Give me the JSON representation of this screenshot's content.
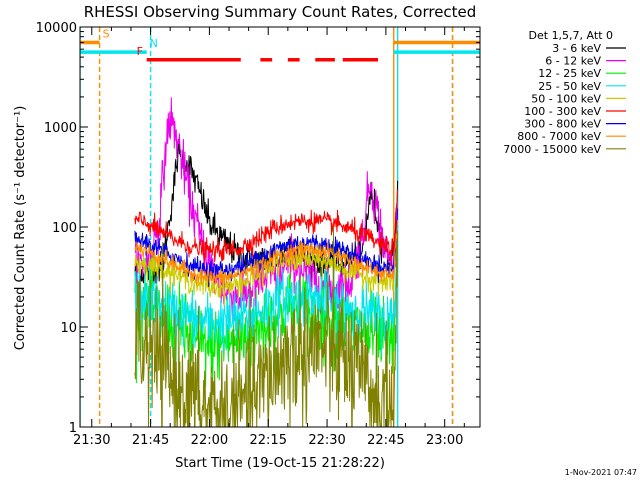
{
  "chart_data": {
    "type": "line",
    "title": "RHESSI Observing Summary Count Rates, Corrected",
    "xlabel": "Start Time (19-Oct-15 21:28:22)",
    "ylabel": "Corrected Count Rate (s⁻¹ detector⁻¹)",
    "yscale": "log",
    "xlim": [
      "21:27",
      "23:09"
    ],
    "ylim": [
      1,
      10000
    ],
    "x_ticks": [
      "21:30",
      "21:45",
      "22:00",
      "22:15",
      "22:30",
      "22:45",
      "23:00"
    ],
    "y_ticks": [
      "1",
      "10",
      "100",
      "1000",
      "10000"
    ],
    "footer_date": "1-Nov-2021 07:47",
    "legend": {
      "header": "Det 1,5,7, Att 0",
      "placement": "right"
    },
    "flags": [
      {
        "label": "S",
        "color": "#ff8c00",
        "value": 7000,
        "segments": [
          [
            "21:27",
            "21:32"
          ],
          [
            "22:47",
            "23:09"
          ]
        ]
      },
      {
        "label": "N",
        "color": "#00e5ee",
        "value": 5600,
        "segments": [
          [
            "21:27",
            "21:44"
          ],
          [
            "22:47",
            "23:09"
          ]
        ]
      },
      {
        "label": "F",
        "color": "#ff0000",
        "value": 4700,
        "segments": [
          [
            "21:44",
            "22:08"
          ],
          [
            "22:13",
            "22:16"
          ],
          [
            "22:20",
            "22:23"
          ],
          [
            "22:27",
            "22:32"
          ],
          [
            "22:34",
            "22:43"
          ]
        ]
      }
    ],
    "vertical_markers": [
      {
        "x": "21:27",
        "color": "#00e5ee",
        "style": "solid"
      },
      {
        "x": "21:32",
        "color": "#ff8c00",
        "style": "dashed"
      },
      {
        "x": "21:45",
        "color": "#00e5ee",
        "style": "dashed"
      },
      {
        "x": "22:47",
        "color": "#ff8c00",
        "style": "solid"
      },
      {
        "x": "22:48",
        "color": "#00e5ee",
        "style": "solid"
      },
      {
        "x": "23:02",
        "color": "#00e5ee",
        "style": "dashed"
      },
      {
        "x": "23:02",
        "color": "#ff8c00",
        "style": "dashed"
      }
    ],
    "series": [
      {
        "name": "3 - 6 keV",
        "color": "#000000",
        "noise": 0.08,
        "points": [
          [
            "21:41",
            35
          ],
          [
            "21:44",
            36
          ],
          [
            "21:48",
            40
          ],
          [
            "21:51",
            260
          ],
          [
            "21:52",
            560
          ],
          [
            "21:55",
            400
          ],
          [
            "21:58",
            200
          ],
          [
            "22:00",
            110
          ],
          [
            "22:04",
            70
          ],
          [
            "22:08",
            50
          ],
          [
            "22:12",
            45
          ],
          [
            "22:18",
            50
          ],
          [
            "22:21",
            70
          ],
          [
            "22:24",
            48
          ],
          [
            "22:30",
            43
          ],
          [
            "22:36",
            45
          ],
          [
            "22:39",
            55
          ],
          [
            "22:41",
            210
          ],
          [
            "22:42",
            170
          ],
          [
            "22:44",
            70
          ],
          [
            "22:46",
            52
          ],
          [
            "22:47",
            55
          ],
          [
            "22:48",
            210
          ]
        ]
      },
      {
        "name": "6 - 12 keV",
        "color": "#ee00ee",
        "noise": 0.12,
        "points": [
          [
            "21:41",
            44
          ],
          [
            "21:44",
            42
          ],
          [
            "21:47",
            100
          ],
          [
            "21:49",
            700
          ],
          [
            "21:50",
            1250
          ],
          [
            "21:52",
            700
          ],
          [
            "21:55",
            200
          ],
          [
            "21:58",
            70
          ],
          [
            "22:01",
            35
          ],
          [
            "22:04",
            22
          ],
          [
            "22:08",
            20
          ],
          [
            "22:12",
            26
          ],
          [
            "22:15",
            32
          ],
          [
            "22:18",
            34
          ],
          [
            "22:21",
            48
          ],
          [
            "22:24",
            35
          ],
          [
            "22:27",
            28
          ],
          [
            "22:32",
            24
          ],
          [
            "22:36",
            28
          ],
          [
            "22:39",
            80
          ],
          [
            "22:41",
            300
          ],
          [
            "22:43",
            130
          ],
          [
            "22:45",
            55
          ],
          [
            "22:47",
            42
          ],
          [
            "22:48",
            150
          ]
        ]
      },
      {
        "name": "12 - 25 keV",
        "color": "#00ee00",
        "noise": 0.2,
        "points": [
          [
            "21:41",
            18
          ],
          [
            "21:44",
            16
          ],
          [
            "21:48",
            13
          ],
          [
            "21:52",
            10
          ],
          [
            "21:56",
            7
          ],
          [
            "22:00",
            6.5
          ],
          [
            "22:04",
            7
          ],
          [
            "22:08",
            7.5
          ],
          [
            "22:12",
            9
          ],
          [
            "22:16",
            12
          ],
          [
            "22:20",
            15
          ],
          [
            "22:24",
            14
          ],
          [
            "22:28",
            13
          ],
          [
            "22:32",
            12
          ],
          [
            "22:36",
            10
          ],
          [
            "22:40",
            9
          ],
          [
            "22:44",
            7
          ],
          [
            "22:47",
            6
          ],
          [
            "22:48",
            90
          ]
        ]
      },
      {
        "name": "25 - 50 keV",
        "color": "#00e5ee",
        "noise": 0.14,
        "points": [
          [
            "21:41",
            22
          ],
          [
            "21:44",
            20
          ],
          [
            "21:48",
            17
          ],
          [
            "21:52",
            14
          ],
          [
            "21:56",
            12
          ],
          [
            "22:00",
            11
          ],
          [
            "22:04",
            11.5
          ],
          [
            "22:08",
            12
          ],
          [
            "22:12",
            14
          ],
          [
            "22:16",
            17
          ],
          [
            "22:20",
            20
          ],
          [
            "22:24",
            20
          ],
          [
            "22:28",
            19
          ],
          [
            "22:32",
            18
          ],
          [
            "22:36",
            16
          ],
          [
            "22:40",
            14
          ],
          [
            "22:44",
            12
          ],
          [
            "22:47",
            12
          ],
          [
            "22:48",
            100
          ]
        ]
      },
      {
        "name": "50 - 100 keV",
        "color": "#cccc00",
        "noise": 0.06,
        "points": [
          [
            "21:41",
            44
          ],
          [
            "21:44",
            42
          ],
          [
            "21:48",
            38
          ],
          [
            "21:52",
            33
          ],
          [
            "21:56",
            28
          ],
          [
            "22:00",
            25
          ],
          [
            "22:04",
            25
          ],
          [
            "22:08",
            27
          ],
          [
            "22:12",
            32
          ],
          [
            "22:16",
            40
          ],
          [
            "22:20",
            46
          ],
          [
            "22:24",
            47
          ],
          [
            "22:28",
            46
          ],
          [
            "22:32",
            42
          ],
          [
            "22:36",
            36
          ],
          [
            "22:40",
            32
          ],
          [
            "22:44",
            28
          ],
          [
            "22:47",
            28
          ],
          [
            "22:48",
            110
          ]
        ]
      },
      {
        "name": "100 - 300 keV",
        "color": "#ff0000",
        "noise": 0.05,
        "points": [
          [
            "21:41",
            118
          ],
          [
            "21:44",
            110
          ],
          [
            "21:48",
            88
          ],
          [
            "21:52",
            72
          ],
          [
            "21:56",
            62
          ],
          [
            "22:00",
            58
          ],
          [
            "22:04",
            58
          ],
          [
            "22:08",
            62
          ],
          [
            "22:12",
            75
          ],
          [
            "22:16",
            95
          ],
          [
            "22:20",
            110
          ],
          [
            "22:24",
            115
          ],
          [
            "22:28",
            115
          ],
          [
            "22:32",
            108
          ],
          [
            "22:36",
            95
          ],
          [
            "22:40",
            80
          ],
          [
            "22:44",
            65
          ],
          [
            "22:47",
            60
          ],
          [
            "22:48",
            210
          ]
        ]
      },
      {
        "name": "300 - 800 keV",
        "color": "#0000ee",
        "noise": 0.05,
        "points": [
          [
            "21:41",
            75
          ],
          [
            "21:44",
            70
          ],
          [
            "21:48",
            58
          ],
          [
            "21:52",
            48
          ],
          [
            "21:56",
            40
          ],
          [
            "22:00",
            37
          ],
          [
            "22:04",
            37
          ],
          [
            "22:08",
            40
          ],
          [
            "22:12",
            48
          ],
          [
            "22:16",
            58
          ],
          [
            "22:20",
            66
          ],
          [
            "22:24",
            70
          ],
          [
            "22:28",
            68
          ],
          [
            "22:32",
            64
          ],
          [
            "22:36",
            55
          ],
          [
            "22:40",
            46
          ],
          [
            "22:44",
            40
          ],
          [
            "22:47",
            38
          ],
          [
            "22:48",
            140
          ]
        ]
      },
      {
        "name": "800 - 7000 keV",
        "color": "#ff8c00",
        "noise": 0.04,
        "points": [
          [
            "21:41",
            62
          ],
          [
            "21:44",
            58
          ],
          [
            "21:48",
            48
          ],
          [
            "21:52",
            40
          ],
          [
            "21:56",
            34
          ],
          [
            "22:00",
            31
          ],
          [
            "22:04",
            31
          ],
          [
            "22:08",
            34
          ],
          [
            "22:12",
            40
          ],
          [
            "22:16",
            48
          ],
          [
            "22:20",
            56
          ],
          [
            "22:24",
            60
          ],
          [
            "22:28",
            58
          ],
          [
            "22:32",
            54
          ],
          [
            "22:36",
            46
          ],
          [
            "22:40",
            39
          ],
          [
            "22:44",
            34
          ],
          [
            "22:47",
            32
          ],
          [
            "22:48",
            125
          ]
        ]
      },
      {
        "name": "7000 - 15000 keV",
        "color": "#808000",
        "noise": 0.35,
        "points": [
          [
            "21:41",
            8
          ],
          [
            "21:44",
            6
          ],
          [
            "21:48",
            4
          ],
          [
            "21:52",
            2.5
          ],
          [
            "21:56",
            1.8
          ],
          [
            "22:00",
            1.4
          ],
          [
            "22:04",
            1.4
          ],
          [
            "22:08",
            1.6
          ],
          [
            "22:12",
            2.2
          ],
          [
            "22:16",
            3.5
          ],
          [
            "22:20",
            5
          ],
          [
            "22:24",
            6
          ],
          [
            "22:28",
            6.5
          ],
          [
            "22:32",
            5.5
          ],
          [
            "22:36",
            4
          ],
          [
            "22:40",
            2.5
          ],
          [
            "22:44",
            1.8
          ],
          [
            "22:47",
            1.5
          ],
          [
            "22:48",
            60
          ]
        ]
      }
    ]
  }
}
